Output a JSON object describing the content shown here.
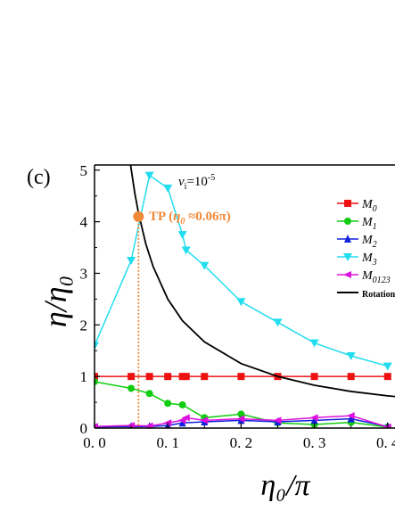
{
  "chart_data": {
    "type": "line",
    "panel_label": "(c)",
    "xlabel": "η₀/π",
    "ylabel": "η/η₀",
    "xlim": [
      0.0,
      0.41
    ],
    "ylim": [
      0,
      5.1
    ],
    "xticks": [
      0.0,
      0.1,
      0.2,
      0.3,
      0.4
    ],
    "xtick_labels": [
      "0. 0",
      "0. 1",
      "0. 2",
      "0. 3",
      "0. 4"
    ],
    "yticks": [
      0,
      1,
      2,
      3,
      4,
      5
    ],
    "ytick_labels": [
      "0",
      "1",
      "2",
      "3",
      "4",
      "5"
    ],
    "annotation_vi": "v",
    "annotation_vi_sub": "i",
    "annotation_vi_val": "=10",
    "annotation_vi_exp": "-5",
    "tp_label": "TP (",
    "tp_eta": "η",
    "tp_sub": "0",
    "tp_rest": " ≈0.06π)",
    "tp_point": {
      "x": 0.06,
      "y": 4.1
    },
    "legend_position": "top-right",
    "series": [
      {
        "name": "M0",
        "name_main": "M",
        "name_sub": "0",
        "color": "#ee1111",
        "marker": "square",
        "x": [
          0.0,
          0.05,
          0.075,
          0.1,
          0.12,
          0.125,
          0.15,
          0.2,
          0.25,
          0.3,
          0.35,
          0.4
        ],
        "y": [
          1.0,
          1.0,
          1.0,
          1.0,
          1.0,
          1.0,
          1.0,
          1.0,
          1.0,
          1.0,
          1.0,
          1.0
        ]
      },
      {
        "name": "M1",
        "name_main": "M",
        "name_sub": "1",
        "color": "#11cc11",
        "marker": "circle",
        "x": [
          0.0,
          0.05,
          0.075,
          0.1,
          0.12,
          0.15,
          0.2,
          0.25,
          0.3,
          0.35,
          0.4
        ],
        "y": [
          0.9,
          0.77,
          0.67,
          0.48,
          0.45,
          0.2,
          0.27,
          0.1,
          0.07,
          0.11,
          0.02
        ]
      },
      {
        "name": "M2",
        "name_main": "M",
        "name_sub": "2",
        "color": "#1122dd",
        "marker": "triangle-up",
        "x": [
          0.0,
          0.05,
          0.075,
          0.1,
          0.12,
          0.15,
          0.2,
          0.25,
          0.3,
          0.35,
          0.4
        ],
        "y": [
          0.02,
          0.03,
          0.03,
          0.05,
          0.1,
          0.12,
          0.15,
          0.12,
          0.15,
          0.18,
          0.03
        ]
      },
      {
        "name": "M3",
        "name_main": "M",
        "name_sub": "3",
        "color": "#22ddee",
        "marker": "triangle-down",
        "x": [
          0.0,
          0.05,
          0.075,
          0.1,
          0.12,
          0.125,
          0.15,
          0.2,
          0.25,
          0.3,
          0.35,
          0.4
        ],
        "y": [
          1.6,
          3.25,
          4.9,
          4.65,
          3.75,
          3.45,
          3.15,
          2.45,
          2.05,
          1.65,
          1.4,
          1.2
        ]
      },
      {
        "name": "M0123",
        "name_main": "M",
        "name_sub": "0123",
        "color": "#dd11dd",
        "marker": "triangle-left",
        "x": [
          0.0,
          0.05,
          0.075,
          0.1,
          0.12,
          0.125,
          0.15,
          0.2,
          0.25,
          0.3,
          0.35,
          0.4
        ],
        "y": [
          0.03,
          0.05,
          0.04,
          0.1,
          0.15,
          0.2,
          0.15,
          0.18,
          0.15,
          0.2,
          0.24,
          0.02
        ]
      },
      {
        "name": "Rotation",
        "color": "#000000",
        "marker": "none",
        "x": [
          0.0476,
          0.055,
          0.06,
          0.07,
          0.08,
          0.1,
          0.12,
          0.15,
          0.2,
          0.25,
          0.3,
          0.35,
          0.4,
          0.45
        ],
        "y": [
          5.25,
          4.55,
          4.17,
          3.57,
          3.13,
          2.5,
          2.08,
          1.67,
          1.25,
          1.0,
          0.83,
          0.71,
          0.625,
          0.556
        ]
      }
    ]
  }
}
